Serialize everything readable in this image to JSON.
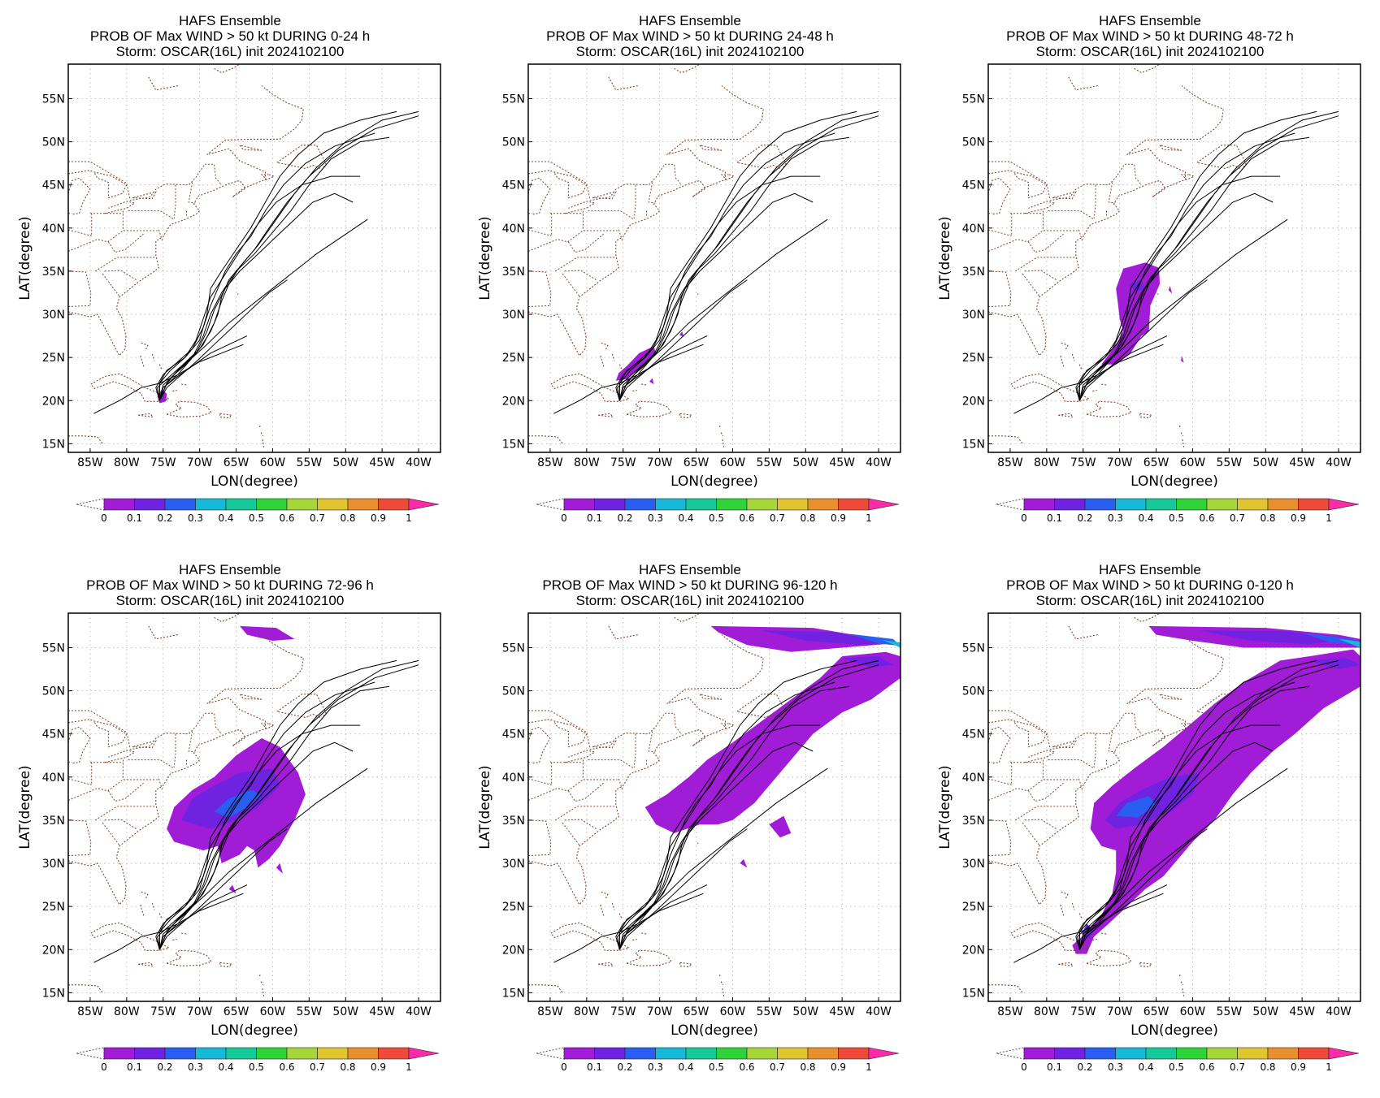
{
  "figure": {
    "xlabel": "LON(degree)",
    "ylabel": "LAT(degree)",
    "lon_ticks": [
      "85W",
      "80W",
      "75W",
      "70W",
      "65W",
      "60W",
      "55W",
      "50W",
      "45W",
      "40W"
    ],
    "lat_ticks": [
      "15N",
      "20N",
      "25N",
      "30N",
      "35N",
      "40N",
      "45N",
      "50N",
      "55N"
    ],
    "colorbar_labels": [
      "0",
      "0.1",
      "0.2",
      "0.3",
      "0.4",
      "0.5",
      "0.6",
      "0.7",
      "0.8",
      "0.9",
      "1"
    ],
    "colorbar_colors": [
      "#a01cd6",
      "#6f22e0",
      "#2a5ef0",
      "#18b8d8",
      "#16c89a",
      "#30d23a",
      "#a6d63a",
      "#e0c430",
      "#e89030",
      "#ee4a3a",
      "#ff2aa8"
    ]
  },
  "panels": [
    {
      "title1": "HAFS Ensemble",
      "title2": "PROB OF Max WIND > 50 kt DURING  0-24 h",
      "title3": "Storm: OSCAR(16L) init 2024102100"
    },
    {
      "title1": "HAFS Ensemble",
      "title2": "PROB OF Max WIND > 50 kt DURING 24-48 h",
      "title3": "Storm: OSCAR(16L) init 2024102100"
    },
    {
      "title1": "HAFS Ensemble",
      "title2": "PROB OF Max WIND > 50 kt DURING 48-72 h",
      "title3": "Storm: OSCAR(16L) init 2024102100"
    },
    {
      "title1": "HAFS Ensemble",
      "title2": "PROB OF Max WIND > 50 kt DURING 72-96 h",
      "title3": "Storm: OSCAR(16L) init 2024102100"
    },
    {
      "title1": "HAFS Ensemble",
      "title2": "PROB OF Max WIND > 50 kt DURING 96-120 h",
      "title3": "Storm: OSCAR(16L) init 2024102100"
    },
    {
      "title1": "HAFS Ensemble",
      "title2": "PROB OF Max WIND > 50 kt DURING 0-120 h",
      "title3": "Storm: OSCAR(16L) init 2024102100"
    }
  ],
  "chart_data": {
    "type": "map",
    "xlim": [
      -88,
      -37
    ],
    "ylim": [
      14,
      59
    ],
    "colorbar_levels": [
      0,
      0.1,
      0.2,
      0.3,
      0.4,
      0.5,
      0.6,
      0.7,
      0.8,
      0.9,
      1
    ],
    "grid": true,
    "ensemble_tracks": [
      [
        [
          -75.5,
          20
        ],
        [
          -75.8,
          21.5
        ],
        [
          -74.5,
          22.5
        ],
        [
          -72.5,
          24
        ],
        [
          -70,
          26
        ],
        [
          -68.5,
          28
        ],
        [
          -67.5,
          30
        ],
        [
          -67,
          32
        ],
        [
          -66,
          34
        ],
        [
          -64,
          36
        ],
        [
          -62,
          38
        ],
        [
          -59.5,
          41
        ],
        [
          -57,
          44
        ],
        [
          -54,
          47
        ],
        [
          -50,
          50
        ],
        [
          -45,
          52.5
        ],
        [
          -40,
          53.5
        ]
      ],
      [
        [
          -75.5,
          20
        ],
        [
          -75,
          21.8
        ],
        [
          -73.5,
          23
        ],
        [
          -71.5,
          24.5
        ],
        [
          -69.5,
          26.5
        ],
        [
          -68,
          29
        ],
        [
          -67,
          31.5
        ],
        [
          -66,
          33.5
        ],
        [
          -64.5,
          35.5
        ],
        [
          -62.5,
          37.5
        ],
        [
          -60.5,
          40
        ],
        [
          -58,
          43
        ],
        [
          -55,
          46
        ],
        [
          -51,
          49
        ],
        [
          -46,
          51.5
        ],
        [
          -40,
          53
        ]
      ],
      [
        [
          -75.5,
          20
        ],
        [
          -76,
          21.5
        ],
        [
          -75,
          23
        ],
        [
          -73,
          24.5
        ],
        [
          -71,
          26
        ],
        [
          -69.5,
          28.5
        ],
        [
          -68.5,
          31
        ],
        [
          -67.5,
          33
        ],
        [
          -66.5,
          35
        ],
        [
          -65,
          37
        ],
        [
          -63,
          39
        ],
        [
          -61,
          42
        ],
        [
          -58.5,
          45
        ],
        [
          -55.5,
          47.5
        ],
        [
          -51.5,
          49.5
        ],
        [
          -46,
          51
        ]
      ],
      [
        [
          -75.5,
          20
        ],
        [
          -75.5,
          22
        ],
        [
          -74,
          23.5
        ],
        [
          -72,
          25
        ],
        [
          -70.5,
          27
        ],
        [
          -69.5,
          29.5
        ],
        [
          -68.5,
          32
        ],
        [
          -67,
          34
        ],
        [
          -65.5,
          36
        ],
        [
          -64,
          38
        ],
        [
          -62,
          40.5
        ],
        [
          -59.5,
          43
        ],
        [
          -56,
          45
        ],
        [
          -52,
          46
        ],
        [
          -48,
          46
        ]
      ],
      [
        [
          -75.5,
          20
        ],
        [
          -74.5,
          22
        ],
        [
          -73,
          23.5
        ],
        [
          -70.5,
          25.5
        ],
        [
          -69,
          28
        ],
        [
          -68,
          30.5
        ],
        [
          -66.5,
          33
        ],
        [
          -64.5,
          35
        ],
        [
          -62,
          37
        ],
        [
          -59.5,
          39
        ],
        [
          -57,
          41
        ],
        [
          -54.5,
          43
        ],
        [
          -51.5,
          44
        ],
        [
          -49,
          43
        ]
      ],
      [
        [
          -75.5,
          20
        ],
        [
          -75,
          21.5
        ],
        [
          -73.5,
          22.5
        ],
        [
          -71,
          24
        ],
        [
          -68.5,
          25.5
        ],
        [
          -66,
          26.5
        ],
        [
          -63.5,
          27.5
        ]
      ],
      [
        [
          -75.5,
          20
        ],
        [
          -74.5,
          21.5
        ],
        [
          -72.5,
          23
        ],
        [
          -70.5,
          24.5
        ],
        [
          -68,
          26.5
        ],
        [
          -65.5,
          28.5
        ],
        [
          -63,
          30.5
        ],
        [
          -60.5,
          32.5
        ],
        [
          -58,
          34
        ]
      ],
      [
        [
          -75.5,
          20
        ],
        [
          -74.5,
          22
        ],
        [
          -73,
          23.5
        ],
        [
          -71,
          25
        ],
        [
          -69,
          26.5
        ],
        [
          -66,
          29
        ],
        [
          -63,
          31
        ],
        [
          -60,
          33
        ],
        [
          -57,
          35
        ],
        [
          -54,
          37
        ],
        [
          -50.5,
          39
        ],
        [
          -47,
          41
        ]
      ],
      [
        [
          -84.5,
          18.5
        ],
        [
          -81,
          20
        ],
        [
          -78,
          21.5
        ],
        [
          -75.5,
          22
        ],
        [
          -73,
          23
        ],
        [
          -70,
          24.5
        ],
        [
          -67,
          25.5
        ],
        [
          -64,
          26.5
        ]
      ],
      [
        [
          -75.5,
          20
        ],
        [
          -75.5,
          22
        ],
        [
          -74.5,
          23.5
        ],
        [
          -72,
          25
        ],
        [
          -70,
          27
        ],
        [
          -69,
          30
        ],
        [
          -68.5,
          33
        ],
        [
          -67,
          35
        ],
        [
          -65,
          37.5
        ],
        [
          -63,
          40
        ],
        [
          -61,
          43
        ],
        [
          -59,
          46
        ],
        [
          -56.5,
          48.5
        ],
        [
          -53,
          51
        ],
        [
          -48,
          52.5
        ],
        [
          -43,
          53.5
        ]
      ],
      [
        [
          -75.5,
          20
        ],
        [
          -75,
          21.5
        ],
        [
          -73,
          23
        ],
        [
          -71,
          25
        ],
        [
          -69.5,
          27.5
        ],
        [
          -68.5,
          30
        ],
        [
          -67,
          32.5
        ],
        [
          -65,
          35
        ],
        [
          -62.5,
          37
        ],
        [
          -60,
          39.5
        ],
        [
          -57.5,
          42
        ],
        [
          -55,
          45
        ],
        [
          -52,
          48
        ],
        [
          -48,
          50
        ],
        [
          -44,
          50.5
        ]
      ]
    ],
    "prob_areas_note": "Purple to blue shaded areas indicate probability 0.1-0.3 along the forecast track for each lead-time window."
  }
}
